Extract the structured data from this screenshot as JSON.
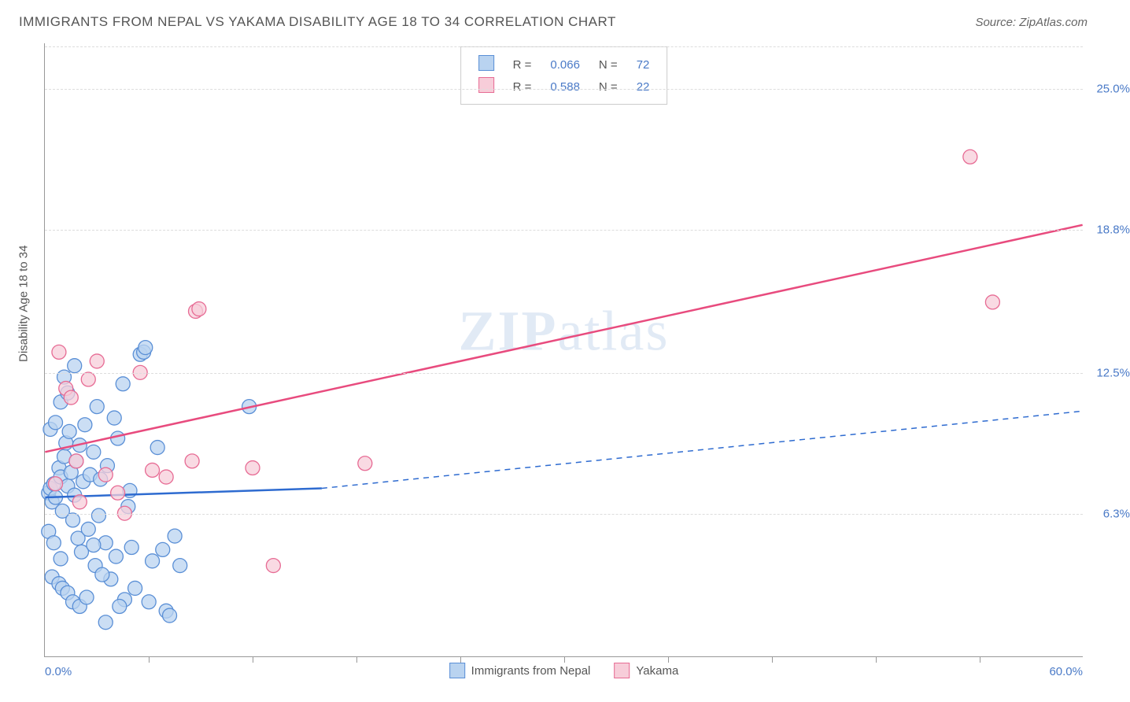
{
  "title": "IMMIGRANTS FROM NEPAL VS YAKAMA DISABILITY AGE 18 TO 34 CORRELATION CHART",
  "source": "Source: ZipAtlas.com",
  "y_axis_title": "Disability Age 18 to 34",
  "watermark_a": "ZIP",
  "watermark_b": "atlas",
  "chart": {
    "type": "scatter",
    "x_min": 0.0,
    "x_max": 60.0,
    "y_min": 0.0,
    "y_max": 27.0,
    "x_label_min": "0.0%",
    "x_label_max": "60.0%",
    "y_ticks": [
      6.3,
      12.5,
      18.8,
      25.0
    ],
    "y_tick_labels": [
      "6.3%",
      "12.5%",
      "18.8%",
      "25.0%"
    ],
    "x_tick_positions": [
      6,
      12,
      18,
      24,
      30,
      36,
      42,
      48,
      54
    ],
    "grid_color": "#dddddd",
    "axis_color": "#999999",
    "background_color": "#ffffff",
    "series": [
      {
        "name": "Immigrants from Nepal",
        "marker_fill": "#b9d3f0",
        "marker_stroke": "#5a8fd6",
        "marker_radius": 9,
        "regression": {
          "r": "0.066",
          "n": "72",
          "line_color": "#2e6bd0",
          "line_width": 2.5,
          "solid_start": [
            0,
            7.0
          ],
          "solid_end": [
            16,
            7.4
          ],
          "dashed_end": [
            60,
            10.8
          ]
        },
        "points": [
          [
            0.2,
            7.2
          ],
          [
            0.3,
            7.4
          ],
          [
            0.4,
            6.8
          ],
          [
            0.5,
            7.6
          ],
          [
            0.6,
            7.0
          ],
          [
            0.8,
            8.3
          ],
          [
            0.9,
            7.9
          ],
          [
            1.0,
            6.4
          ],
          [
            1.1,
            8.8
          ],
          [
            1.2,
            9.4
          ],
          [
            1.3,
            7.5
          ],
          [
            1.4,
            9.9
          ],
          [
            1.5,
            8.1
          ],
          [
            1.6,
            6.0
          ],
          [
            1.7,
            7.1
          ],
          [
            1.8,
            8.6
          ],
          [
            1.9,
            5.2
          ],
          [
            2.0,
            9.3
          ],
          [
            2.1,
            4.6
          ],
          [
            2.2,
            7.7
          ],
          [
            2.3,
            10.2
          ],
          [
            2.5,
            5.6
          ],
          [
            2.6,
            8.0
          ],
          [
            2.8,
            9.0
          ],
          [
            2.9,
            4.0
          ],
          [
            3.0,
            11.0
          ],
          [
            3.1,
            6.2
          ],
          [
            3.2,
            7.8
          ],
          [
            3.5,
            5.0
          ],
          [
            3.6,
            8.4
          ],
          [
            3.8,
            3.4
          ],
          [
            4.0,
            10.5
          ],
          [
            4.1,
            4.4
          ],
          [
            4.2,
            9.6
          ],
          [
            4.5,
            12.0
          ],
          [
            4.6,
            2.5
          ],
          [
            4.8,
            6.6
          ],
          [
            5.0,
            4.8
          ],
          [
            5.2,
            3.0
          ],
          [
            5.5,
            13.3
          ],
          [
            5.7,
            13.4
          ],
          [
            5.8,
            13.6
          ],
          [
            6.0,
            2.4
          ],
          [
            6.2,
            4.2
          ],
          [
            6.5,
            9.2
          ],
          [
            6.8,
            4.7
          ],
          [
            7.0,
            2.0
          ],
          [
            7.2,
            1.8
          ],
          [
            7.5,
            5.3
          ],
          [
            7.8,
            4.0
          ],
          [
            0.4,
            3.5
          ],
          [
            0.8,
            3.2
          ],
          [
            1.0,
            3.0
          ],
          [
            1.3,
            2.8
          ],
          [
            1.6,
            2.4
          ],
          [
            2.0,
            2.2
          ],
          [
            2.4,
            2.6
          ],
          [
            2.8,
            4.9
          ],
          [
            3.3,
            3.6
          ],
          [
            4.3,
            2.2
          ],
          [
            0.3,
            10.0
          ],
          [
            0.6,
            10.3
          ],
          [
            0.9,
            11.2
          ],
          [
            1.1,
            12.3
          ],
          [
            1.3,
            11.6
          ],
          [
            1.7,
            12.8
          ],
          [
            0.2,
            5.5
          ],
          [
            0.5,
            5.0
          ],
          [
            0.9,
            4.3
          ],
          [
            3.5,
            1.5
          ],
          [
            11.8,
            11.0
          ],
          [
            4.9,
            7.3
          ]
        ]
      },
      {
        "name": "Yakama",
        "marker_fill": "#f7cdd9",
        "marker_stroke": "#e76b94",
        "marker_radius": 9,
        "regression": {
          "r": "0.588",
          "n": "22",
          "line_color": "#e84b7e",
          "line_width": 2.5,
          "solid_start": [
            0,
            9.0
          ],
          "solid_end": [
            60,
            19.0
          ]
        },
        "points": [
          [
            0.8,
            13.4
          ],
          [
            1.2,
            11.8
          ],
          [
            1.5,
            11.4
          ],
          [
            2.5,
            12.2
          ],
          [
            3.0,
            13.0
          ],
          [
            4.2,
            7.2
          ],
          [
            4.6,
            6.3
          ],
          [
            5.5,
            12.5
          ],
          [
            6.2,
            8.2
          ],
          [
            7.0,
            7.9
          ],
          [
            8.5,
            8.6
          ],
          [
            8.7,
            15.2
          ],
          [
            8.9,
            15.3
          ],
          [
            12.0,
            8.3
          ],
          [
            13.2,
            4.0
          ],
          [
            18.5,
            8.5
          ],
          [
            1.8,
            8.6
          ],
          [
            3.5,
            8.0
          ],
          [
            2.0,
            6.8
          ],
          [
            0.6,
            7.6
          ],
          [
            53.5,
            22.0
          ],
          [
            54.8,
            15.6
          ]
        ]
      }
    ],
    "legend_bottom": [
      {
        "label": "Immigrants from Nepal",
        "fill": "#b9d3f0",
        "stroke": "#5a8fd6"
      },
      {
        "label": "Yakama",
        "fill": "#f7cdd9",
        "stroke": "#e76b94"
      }
    ],
    "legend_top_r_label": "R =",
    "legend_top_n_label": "N ="
  }
}
